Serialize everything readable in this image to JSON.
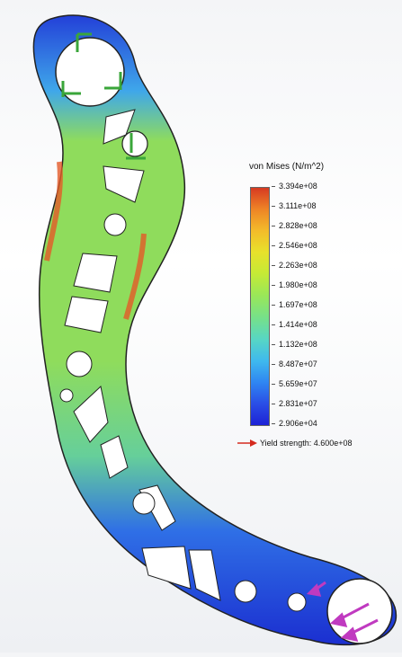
{
  "legend": {
    "title": "von Mises (N/m^2)",
    "ticks": [
      "3.394e+08",
      "3.111e+08",
      "2.828e+08",
      "2.546e+08",
      "2.263e+08",
      "1.980e+08",
      "1.697e+08",
      "1.414e+08",
      "1.132e+08",
      "8.487e+07",
      "5.659e+07",
      "2.831e+07",
      "2.906e+04"
    ],
    "yield_label": "Yield strength: 4.600e+08",
    "yield_arrow_color": "#d42a1e"
  },
  "colors": {
    "low": "#1d22d6",
    "mid": "#9be757",
    "high": "#d63a22",
    "fixture_arrows": "#3aa63a",
    "load_arrows": "#c03ac0"
  }
}
